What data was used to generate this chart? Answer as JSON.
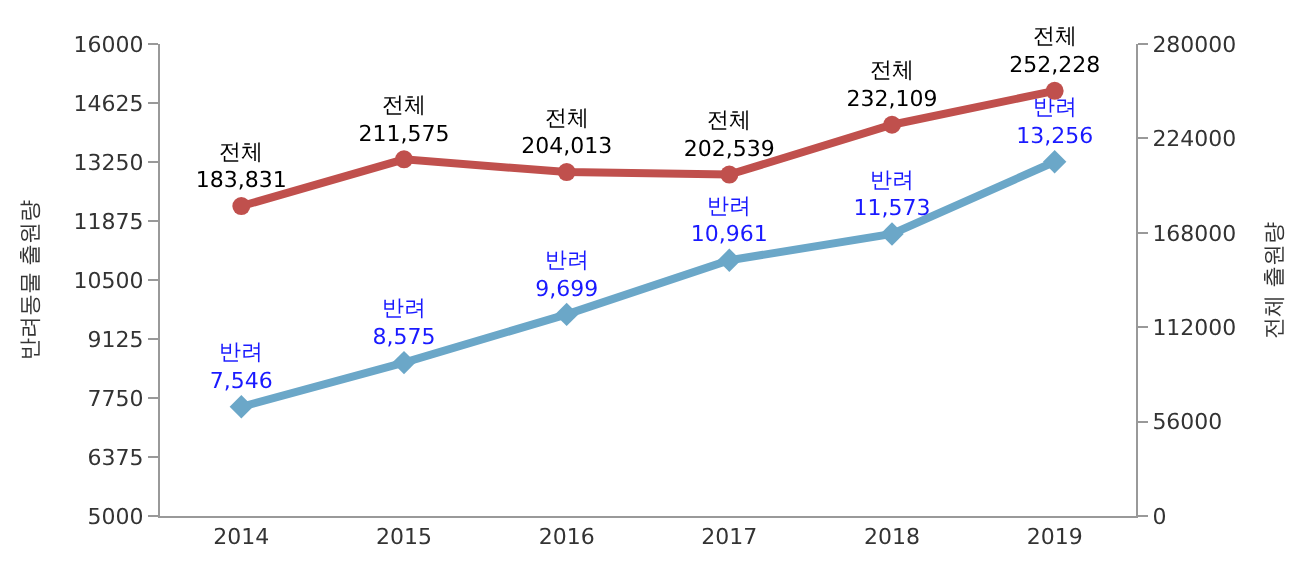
{
  "chart_data": {
    "type": "line",
    "categories": [
      "2014",
      "2015",
      "2016",
      "2017",
      "2018",
      "2019"
    ],
    "ylabel": "반려동물 출원량",
    "y2label": "전체 출원량",
    "ylim": [
      5000,
      16000
    ],
    "yticks": [
      5000,
      6375,
      7750,
      9125,
      10500,
      11875,
      13250,
      14625,
      16000
    ],
    "y2lim": [
      0,
      280000
    ],
    "y2ticks": [
      0,
      56000,
      112000,
      168000,
      224000,
      280000
    ],
    "series": [
      {
        "color": "#c0504d",
        "axis": "y2",
        "marker": "circle",
        "values": [
          183831,
          211575,
          204013,
          202539,
          232109,
          252228
        ],
        "value_labels": [
          "전체\n183,831",
          "전체\n211,575",
          "전체\n204,013",
          "전체\n202,539",
          "전체\n232,109",
          "전체\n252,228"
        ]
      },
      {
        "color": "#6ba7c8",
        "axis": "y",
        "marker": "diamond",
        "values": [
          7546,
          8575,
          9699,
          10961,
          11573,
          13256
        ],
        "value_labels": [
          "반려\n7,546",
          "반려\n8,575",
          "반려\n9,699",
          "반려\n10,961",
          "반려\n11,573",
          "반려\n13,256"
        ]
      }
    ]
  }
}
